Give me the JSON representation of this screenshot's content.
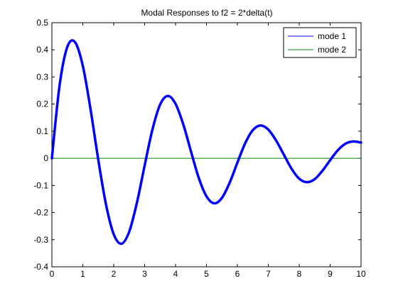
{
  "chart_data": {
    "type": "line",
    "title": "Modal Responses to f2 = 2*delta(t)",
    "xlabel": "",
    "ylabel": "",
    "xlim": [
      0,
      10
    ],
    "ylim": [
      -0.4,
      0.5
    ],
    "x_ticks": [
      0,
      1,
      2,
      3,
      4,
      5,
      6,
      7,
      8,
      9,
      10
    ],
    "x_tick_labels": [
      "0",
      "1",
      "2",
      "3",
      "4",
      "5",
      "6",
      "7",
      "8",
      "9",
      "10"
    ],
    "y_ticks": [
      -0.4,
      -0.3,
      -0.2,
      -0.1,
      0,
      0.1,
      0.2,
      0.3,
      0.4,
      0.5
    ],
    "y_tick_labels": [
      "-0.4",
      "-0.3",
      "-0.2",
      "-0.1",
      "0",
      "0.1",
      "0.2",
      "0.3",
      "0.4",
      "0.5"
    ],
    "grid": false,
    "legend_position": "top-right",
    "series": [
      {
        "name": "mode 1",
        "color": "#0000ff",
        "x": [
          0,
          0.25,
          0.5,
          0.75,
          1.0,
          1.25,
          1.5,
          1.75,
          2.0,
          2.25,
          2.5,
          2.75,
          3.0,
          3.25,
          3.5,
          3.75,
          4.0,
          4.25,
          4.5,
          4.75,
          5.0,
          5.25,
          5.5,
          5.75,
          6.0,
          6.25,
          6.5,
          6.75,
          7.0,
          7.25,
          7.5,
          7.75,
          8.0,
          8.25,
          8.5,
          8.75,
          9.0,
          9.25,
          9.5,
          9.75,
          10.0
        ],
        "values": [
          0,
          0.27,
          0.411,
          0.428,
          0.341,
          0.181,
          -0.005,
          -0.17,
          -0.28,
          -0.315,
          -0.271,
          -0.164,
          -0.027,
          0.105,
          0.198,
          0.23,
          0.201,
          0.125,
          0.025,
          -0.072,
          -0.14,
          -0.166,
          -0.146,
          -0.09,
          -0.016,
          0.055,
          0.104,
          0.121,
          0.106,
          0.066,
          0.014,
          -0.038,
          -0.075,
          -0.088,
          -0.077,
          -0.046,
          -0.007,
          0.03,
          0.054,
          0.062,
          0.058
        ]
      },
      {
        "name": "mode 2",
        "color": "#008000",
        "x": [
          0,
          10
        ],
        "values": [
          0,
          0
        ]
      }
    ]
  }
}
